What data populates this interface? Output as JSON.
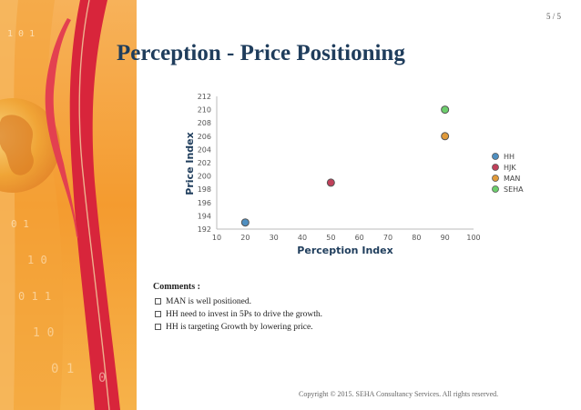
{
  "page": {
    "number": "5 / 5"
  },
  "slide": {
    "title": "Perception - Price Positioning"
  },
  "comments": {
    "title": "Comments :",
    "items": [
      "MAN is well positioned.",
      "HH need to invest in 5Ps to drive the growth.",
      "HH is targeting Growth by lowering price."
    ]
  },
  "footer": {
    "copyright": "Copyright © 2015. SEHA Consultancy Services. All rights reserved."
  },
  "chart_data": {
    "type": "scatter",
    "xlabel": "Perception Index",
    "ylabel": "Price Index",
    "xlim": [
      10,
      100
    ],
    "ylim": [
      192,
      212
    ],
    "xticks": [
      10,
      20,
      30,
      40,
      50,
      60,
      70,
      80,
      90,
      100
    ],
    "yticks": [
      192,
      194,
      196,
      198,
      200,
      202,
      204,
      206,
      208,
      210,
      212
    ],
    "grid": false,
    "legend_position": "right",
    "series": [
      {
        "name": "HH",
        "color": "#4f8fc0",
        "x": [
          20
        ],
        "y": [
          193
        ]
      },
      {
        "name": "HJK",
        "color": "#c0405a",
        "x": [
          50
        ],
        "y": [
          199
        ]
      },
      {
        "name": "MAN",
        "color": "#e09a3a",
        "x": [
          90
        ],
        "y": [
          206
        ]
      },
      {
        "name": "SEHA",
        "color": "#6cce6c",
        "x": [
          90
        ],
        "y": [
          210
        ]
      }
    ]
  }
}
